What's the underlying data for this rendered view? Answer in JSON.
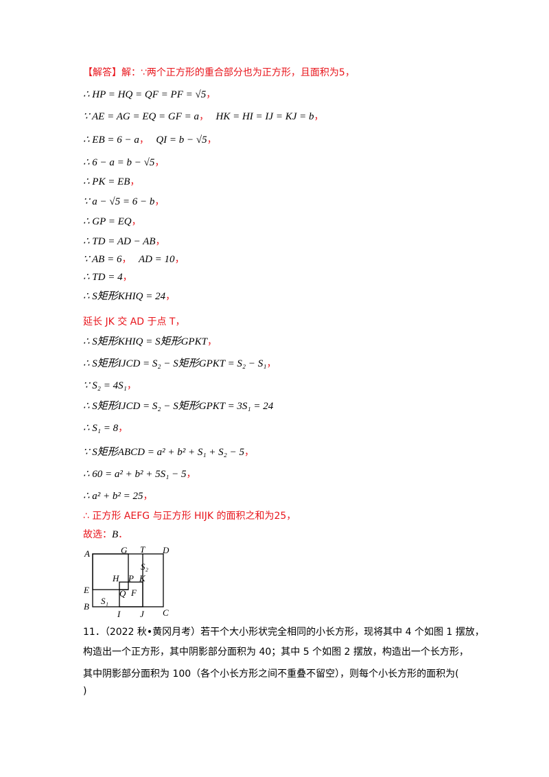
{
  "solution": {
    "tag": "【解答】",
    "intro": "解：∵两个正方形的重合部分也为正方形，且面积为5，",
    "steps": [
      {
        "math": "∴ HP = HQ = QF = PF = √5",
        "tail": "，"
      },
      {
        "math": "∵ AE = AG = EQ = GF = a",
        "tail": "，",
        "math2": "HK = HI = IJ = KJ = b",
        "tail2": "，"
      },
      {
        "math": "∴ EB = 6 − a",
        "tail": "，",
        "math2": "QI = b − √5",
        "tail2": "，"
      },
      {
        "math": "∴ 6 − a = b − √5",
        "tail": "，"
      },
      {
        "math": "∴ PK = EB",
        "tail": "，"
      },
      {
        "math": "∵ a − √5 = 6 − b",
        "tail": "，"
      },
      {
        "math": "∴ GP = EQ",
        "tail": "，"
      },
      {
        "math": "∴ TD = AD − AB",
        "tail": "，"
      },
      {
        "math": "∵ AB = 6",
        "tail": "，",
        "math2": "AD = 10",
        "tail2": "，"
      },
      {
        "math": "∴ TD = 4",
        "tail": "，"
      },
      {
        "math": "∴ S矩形KHIQ = 24",
        "tail": "，"
      }
    ],
    "extend_text": "延长 JK 交 AD 于点 T，",
    "steps2": [
      {
        "math": "∴ S矩形KHIQ = S矩形GPKT",
        "tail": "，"
      },
      {
        "math": "∴ S矩形IJCD = S₂ − S矩形GPKT = S₂ − S₁",
        "tail": "，"
      },
      {
        "math": "∵ S₂ = 4S₁",
        "tail": "，"
      },
      {
        "math": "∴ S矩形IJCD = S₂ − S矩形GPKT = 3S₁ = 24",
        "tail": ""
      },
      {
        "math": "∴ S₁ = 8",
        "tail": "，"
      },
      {
        "math": "∵ S矩形ABCD = a² + b² + S₁ + S₂ − 5",
        "tail": "，"
      },
      {
        "math": "∴ 60 = a² + b² + 5S₁ − 5",
        "tail": "，"
      },
      {
        "math": "∴ a² + b² = 25",
        "tail": "，"
      }
    ],
    "conclusion": "∴ 正方形 AEFG 与正方形 HIJK 的面积之和为25，",
    "answer_label": "故选：",
    "answer": "B",
    "answer_tail": "．"
  },
  "figure_labels": {
    "A": "A",
    "G": "G",
    "T": "T",
    "D": "D",
    "S2": "S₂",
    "H": "H",
    "P": "P",
    "K": "K",
    "E": "E",
    "Q": "Q",
    "F": "F",
    "S1": "S₁",
    "B": "B",
    "I": "I",
    "J": "J",
    "C": "C"
  },
  "question11": {
    "line1": "11．（2022 秋•黄冈月考）若干个大小形状完全相同的小长方形，现将其中 4 个如图 1 摆放，",
    "line2": "构造出一个正方形，其中阴影部分面积为 40；其中 5 个如图 2 摆放，构造出一个长方形，",
    "line3": "其中阴影部分面积为 100（各个小长方形之间不重叠不留空），则每个小长方形的面积为(",
    "line4": ")"
  }
}
